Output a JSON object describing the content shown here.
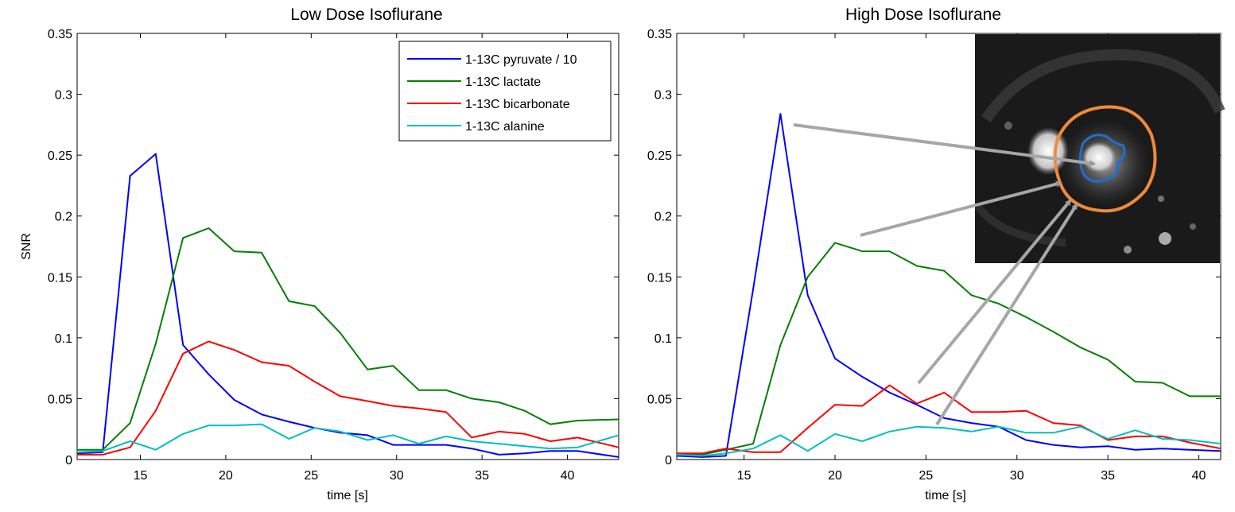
{
  "chart_data": [
    {
      "type": "line",
      "title": "Low Dose Isoflurane",
      "xlabel": "time [s]",
      "ylabel": "SNR",
      "xlim": [
        11.3,
        43
      ],
      "ylim": [
        0,
        0.35
      ],
      "xticks": [
        15,
        20,
        25,
        30,
        35,
        40
      ],
      "xtick_labels": [
        "15",
        "20",
        "25",
        "30",
        "35",
        "40"
      ],
      "yticks": [
        0,
        0.05,
        0.1,
        0.15,
        0.2,
        0.25,
        0.3,
        0.35
      ],
      "ytick_labels": [
        "0",
        "0.05",
        "0.1",
        "0.15",
        "0.2",
        "0.25",
        "0.3",
        "0.35"
      ],
      "grid": false,
      "legend_position": "top-right",
      "series": [
        {
          "name": "1-13C pyruvate / 10",
          "color": "#0000ff",
          "x": [
            11.3,
            12.8,
            14.4,
            15.9,
            17.5,
            19.0,
            20.5,
            22.1,
            23.7,
            25.2,
            26.7,
            28.3,
            29.8,
            31.3,
            32.9,
            34.4,
            36.0,
            37.5,
            39.0,
            40.6,
            43.0
          ],
          "y": [
            0.005,
            0.006,
            0.233,
            0.251,
            0.094,
            0.07,
            0.049,
            0.037,
            0.031,
            0.026,
            0.022,
            0.02,
            0.012,
            0.012,
            0.012,
            0.009,
            0.004,
            0.005,
            0.007,
            0.007,
            0.002
          ]
        },
        {
          "name": "1-13C lactate",
          "color": "#008000",
          "x": [
            11.3,
            12.8,
            14.4,
            15.9,
            17.5,
            19.0,
            20.5,
            22.1,
            23.7,
            25.2,
            26.7,
            28.3,
            29.8,
            31.3,
            32.9,
            34.4,
            36.0,
            37.5,
            39.0,
            40.6,
            43.0
          ],
          "y": [
            0.008,
            0.008,
            0.03,
            0.095,
            0.182,
            0.19,
            0.171,
            0.17,
            0.13,
            0.126,
            0.104,
            0.074,
            0.077,
            0.057,
            0.057,
            0.05,
            0.047,
            0.04,
            0.029,
            0.032,
            0.033
          ]
        },
        {
          "name": "1-13C bicarbonate",
          "color": "#ff0000",
          "x": [
            11.3,
            12.8,
            14.4,
            15.9,
            17.5,
            19.0,
            20.5,
            22.1,
            23.7,
            25.2,
            26.7,
            28.3,
            29.8,
            31.3,
            32.9,
            34.4,
            36.0,
            37.5,
            39.0,
            40.6,
            43.0
          ],
          "y": [
            0.004,
            0.004,
            0.01,
            0.04,
            0.087,
            0.097,
            0.09,
            0.08,
            0.077,
            0.064,
            0.052,
            0.048,
            0.044,
            0.042,
            0.039,
            0.018,
            0.023,
            0.021,
            0.015,
            0.018,
            0.01
          ]
        },
        {
          "name": "1-13C alanine",
          "color": "#00bfbf",
          "x": [
            11.3,
            12.8,
            14.4,
            15.9,
            17.5,
            19.0,
            20.5,
            22.1,
            23.7,
            25.2,
            26.7,
            28.3,
            29.8,
            31.3,
            32.9,
            34.4,
            36.0,
            37.5,
            39.0,
            40.6,
            43.0
          ],
          "y": [
            0.006,
            0.007,
            0.015,
            0.008,
            0.021,
            0.028,
            0.028,
            0.029,
            0.017,
            0.026,
            0.023,
            0.016,
            0.02,
            0.013,
            0.019,
            0.015,
            0.013,
            0.011,
            0.009,
            0.01,
            0.02
          ]
        }
      ]
    },
    {
      "type": "line",
      "title": "High Dose Isoflurane",
      "xlabel": "time [s]",
      "ylabel": "",
      "xlim": [
        11.3,
        41.2
      ],
      "ylim": [
        0,
        0.35
      ],
      "xticks": [
        15,
        20,
        25,
        30,
        35,
        40
      ],
      "xtick_labels": [
        "15",
        "20",
        "25",
        "30",
        "35",
        "40"
      ],
      "yticks": [
        0,
        0.05,
        0.1,
        0.15,
        0.2,
        0.25,
        0.3,
        0.35
      ],
      "ytick_labels": [
        "0",
        "0.05",
        "0.1",
        "0.15",
        "0.2",
        "0.25",
        "0.3",
        "0.35"
      ],
      "grid": false,
      "inset": "MRI image with orange and blue region outlines, grey arrows pointing from curves to regions",
      "series": [
        {
          "color": "#0000ff",
          "x": [
            11.3,
            12.7,
            14.0,
            15.5,
            17.0,
            18.5,
            20.0,
            21.5,
            23.0,
            24.5,
            26.0,
            27.5,
            29.0,
            30.5,
            32.0,
            33.5,
            35.0,
            36.5,
            38.0,
            39.5,
            41.2
          ],
          "y": [
            0.003,
            0.002,
            0.003,
            0.14,
            0.284,
            0.135,
            0.083,
            0.068,
            0.055,
            0.045,
            0.034,
            0.03,
            0.027,
            0.016,
            0.012,
            0.01,
            0.011,
            0.008,
            0.009,
            0.008,
            0.007
          ]
        },
        {
          "color": "#008000",
          "x": [
            11.3,
            12.7,
            14.0,
            15.5,
            17.0,
            18.5,
            20.0,
            21.5,
            23.0,
            24.5,
            26.0,
            27.5,
            29.0,
            30.5,
            32.0,
            33.5,
            35.0,
            36.5,
            38.0,
            39.5,
            41.2
          ],
          "y": [
            0.005,
            0.004,
            0.008,
            0.013,
            0.094,
            0.15,
            0.178,
            0.171,
            0.171,
            0.159,
            0.155,
            0.135,
            0.128,
            0.117,
            0.105,
            0.092,
            0.082,
            0.064,
            0.063,
            0.052,
            0.052
          ]
        },
        {
          "color": "#ff0000",
          "x": [
            11.3,
            12.7,
            14.0,
            15.5,
            17.0,
            18.5,
            20.0,
            21.5,
            23.0,
            24.5,
            26.0,
            27.5,
            29.0,
            30.5,
            32.0,
            33.5,
            35.0,
            36.5,
            38.0,
            39.5,
            41.2
          ],
          "y": [
            0.005,
            0.005,
            0.009,
            0.006,
            0.006,
            0.026,
            0.045,
            0.044,
            0.061,
            0.046,
            0.055,
            0.039,
            0.039,
            0.04,
            0.03,
            0.028,
            0.016,
            0.019,
            0.019,
            0.014,
            0.009
          ]
        },
        {
          "color": "#00bfbf",
          "x": [
            11.3,
            12.7,
            14.0,
            15.5,
            17.0,
            18.5,
            20.0,
            21.5,
            23.0,
            24.5,
            26.0,
            27.5,
            29.0,
            30.5,
            32.0,
            33.5,
            35.0,
            36.5,
            38.0,
            39.5,
            41.2
          ],
          "y": [
            0.004,
            0.003,
            0.005,
            0.009,
            0.02,
            0.007,
            0.021,
            0.015,
            0.023,
            0.027,
            0.026,
            0.023,
            0.027,
            0.022,
            0.022,
            0.027,
            0.017,
            0.024,
            0.017,
            0.016,
            0.013
          ]
        }
      ]
    }
  ]
}
